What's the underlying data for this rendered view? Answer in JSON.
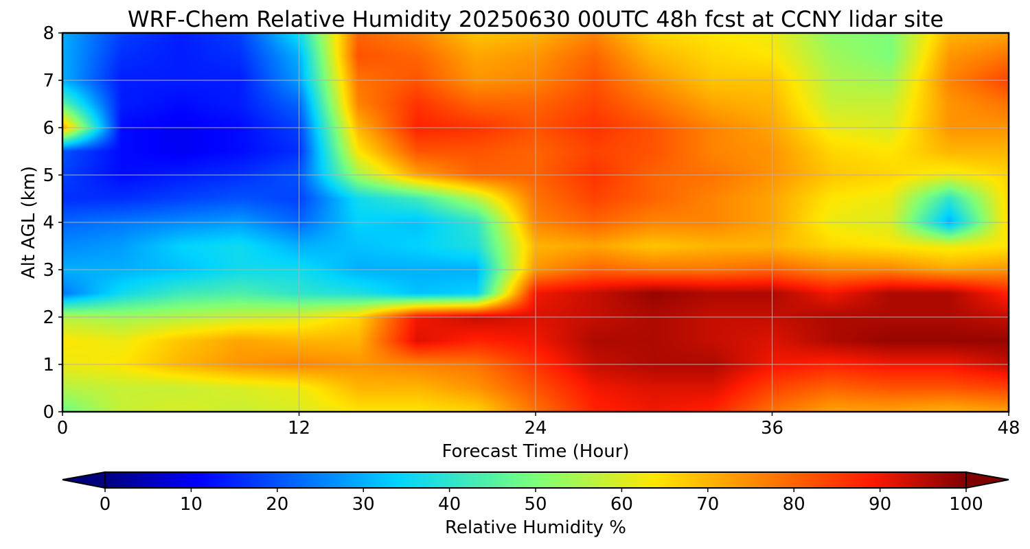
{
  "chart_data": {
    "type": "heatmap",
    "title": "WRF-Chem Relative Humidity 20250630 00UTC 48h fcst at CCNY lidar site",
    "xlabel": "Forecast Time (Hour)",
    "ylabel": "Alt AGL (km)",
    "xlim": [
      0,
      48
    ],
    "ylim": [
      0,
      8
    ],
    "xticks": [
      0,
      12,
      24,
      36,
      48
    ],
    "xtick_labels": [
      "0",
      "12",
      "24",
      "36",
      "48"
    ],
    "yticks": [
      0,
      1,
      2,
      3,
      4,
      5,
      6,
      7,
      8
    ],
    "ytick_labels": [
      "0",
      "1",
      "2",
      "3",
      "4",
      "5",
      "6",
      "7",
      "8"
    ],
    "grid": true,
    "colorscale": "jet",
    "colorbar": {
      "label": "Relative Humidity %",
      "range": [
        0,
        100
      ],
      "ticks": [
        0,
        10,
        20,
        30,
        40,
        50,
        60,
        70,
        80,
        90,
        100
      ],
      "tick_labels": [
        "0",
        "10",
        "20",
        "30",
        "40",
        "50",
        "60",
        "70",
        "80",
        "90",
        "100"
      ],
      "extend": "both",
      "orientation": "horizontal"
    },
    "x": [
      0,
      3,
      6,
      9,
      12,
      15,
      18,
      21,
      24,
      27,
      30,
      33,
      36,
      39,
      42,
      45,
      48
    ],
    "y": [
      0,
      0.5,
      1,
      1.5,
      2,
      2.5,
      3,
      3.5,
      4,
      4.5,
      5,
      5.5,
      6,
      6.5,
      7,
      7.5,
      8
    ],
    "z": [
      [
        48,
        58,
        60,
        58,
        60,
        64,
        64,
        66,
        78,
        88,
        90,
        88,
        78,
        72,
        72,
        70,
        72
      ],
      [
        56,
        58,
        58,
        60,
        62,
        70,
        70,
        74,
        82,
        90,
        92,
        92,
        84,
        80,
        82,
        82,
        84
      ],
      [
        62,
        64,
        70,
        74,
        76,
        74,
        76,
        78,
        86,
        94,
        96,
        96,
        90,
        88,
        90,
        90,
        94
      ],
      [
        64,
        62,
        68,
        72,
        70,
        70,
        92,
        88,
        90,
        96,
        96,
        94,
        92,
        96,
        98,
        98,
        98
      ],
      [
        56,
        54,
        56,
        58,
        60,
        66,
        90,
        94,
        92,
        94,
        96,
        94,
        94,
        96,
        96,
        96,
        94
      ],
      [
        24,
        36,
        42,
        44,
        40,
        38,
        32,
        34,
        90,
        94,
        98,
        96,
        96,
        90,
        96,
        96,
        88
      ],
      [
        30,
        30,
        32,
        36,
        36,
        30,
        30,
        30,
        74,
        80,
        78,
        78,
        80,
        76,
        76,
        72,
        74
      ],
      [
        26,
        28,
        34,
        36,
        30,
        32,
        34,
        38,
        70,
        72,
        68,
        70,
        70,
        66,
        64,
        62,
        64
      ],
      [
        22,
        24,
        26,
        28,
        22,
        34,
        32,
        40,
        76,
        80,
        76,
        76,
        72,
        62,
        60,
        30,
        66
      ],
      [
        16,
        16,
        18,
        20,
        18,
        36,
        42,
        56,
        78,
        84,
        80,
        76,
        72,
        64,
        62,
        40,
        66
      ],
      [
        18,
        12,
        14,
        16,
        20,
        54,
        72,
        80,
        80,
        86,
        80,
        78,
        74,
        68,
        66,
        62,
        66
      ],
      [
        20,
        12,
        10,
        12,
        16,
        64,
        82,
        82,
        80,
        84,
        82,
        76,
        74,
        66,
        64,
        70,
        70
      ],
      [
        72,
        12,
        10,
        12,
        18,
        70,
        88,
        86,
        82,
        86,
        82,
        76,
        72,
        62,
        60,
        74,
        74
      ],
      [
        46,
        14,
        12,
        14,
        22,
        76,
        86,
        80,
        80,
        84,
        78,
        72,
        70,
        58,
        58,
        74,
        78
      ],
      [
        30,
        14,
        14,
        14,
        28,
        78,
        82,
        74,
        76,
        82,
        74,
        68,
        68,
        56,
        54,
        76,
        84
      ],
      [
        30,
        16,
        14,
        16,
        30,
        82,
        80,
        72,
        74,
        80,
        70,
        66,
        64,
        54,
        50,
        74,
        78
      ],
      [
        30,
        18,
        14,
        18,
        36,
        80,
        76,
        68,
        70,
        76,
        66,
        64,
        62,
        52,
        50,
        70,
        72
      ]
    ]
  }
}
